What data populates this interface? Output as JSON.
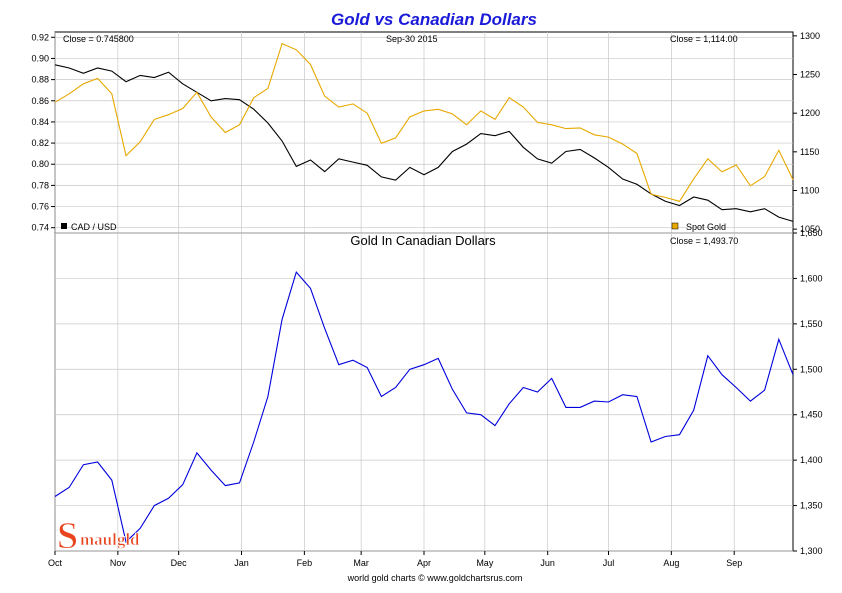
{
  "chart_data": [
    {
      "type": "line",
      "title": "Gold vs Canadian Dollars",
      "date_label": "Sep-30  2015",
      "left_axis": {
        "ylim": [
          0.735,
          0.925
        ],
        "ticks": [
          "0.92",
          "0.90",
          "0.88",
          "0.86",
          "0.84",
          "0.82",
          "0.80",
          "0.78",
          "0.76",
          "0.74"
        ],
        "tick_values": [
          0.92,
          0.9,
          0.88,
          0.86,
          0.84,
          0.82,
          0.8,
          0.78,
          0.76,
          0.74
        ]
      },
      "right_axis": {
        "ylim": [
          1045,
          1305
        ],
        "ticks": [
          "1300",
          "1250",
          "1200",
          "1150",
          "1100",
          "1050"
        ],
        "tick_values": [
          1300,
          1250,
          1200,
          1150,
          1100,
          1050
        ]
      },
      "close_left": "Close = 0.745800",
      "close_right": "Close = 1,114.00",
      "legend_position": "bottom",
      "grid": true,
      "series": [
        {
          "name": "CAD / USD",
          "color": "#000000",
          "axis": "left",
          "points": [
            [
              "2014-10-01",
              0.894
            ],
            [
              "2014-10-08",
              0.891
            ],
            [
              "2014-10-15",
              0.886
            ],
            [
              "2014-10-22",
              0.891
            ],
            [
              "2014-10-29",
              0.888
            ],
            [
              "2014-11-05",
              0.878
            ],
            [
              "2014-11-12",
              0.884
            ],
            [
              "2014-11-19",
              0.882
            ],
            [
              "2014-11-26",
              0.887
            ],
            [
              "2014-12-03",
              0.876
            ],
            [
              "2014-12-10",
              0.868
            ],
            [
              "2014-12-17",
              0.86
            ],
            [
              "2014-12-24",
              0.862
            ],
            [
              "2014-12-31",
              0.861
            ],
            [
              "2015-01-07",
              0.852
            ],
            [
              "2015-01-14",
              0.839
            ],
            [
              "2015-01-21",
              0.822
            ],
            [
              "2015-01-28",
              0.798
            ],
            [
              "2015-02-04",
              0.804
            ],
            [
              "2015-02-11",
              0.793
            ],
            [
              "2015-02-18",
              0.805
            ],
            [
              "2015-02-25",
              0.802
            ],
            [
              "2015-03-04",
              0.799
            ],
            [
              "2015-03-11",
              0.788
            ],
            [
              "2015-03-18",
              0.785
            ],
            [
              "2015-03-25",
              0.797
            ],
            [
              "2015-04-01",
              0.79
            ],
            [
              "2015-04-08",
              0.797
            ],
            [
              "2015-04-15",
              0.812
            ],
            [
              "2015-04-22",
              0.819
            ],
            [
              "2015-04-29",
              0.829
            ],
            [
              "2015-05-06",
              0.827
            ],
            [
              "2015-05-13",
              0.831
            ],
            [
              "2015-05-20",
              0.816
            ],
            [
              "2015-05-27",
              0.805
            ],
            [
              "2015-06-03",
              0.801
            ],
            [
              "2015-06-10",
              0.812
            ],
            [
              "2015-06-17",
              0.814
            ],
            [
              "2015-06-24",
              0.806
            ],
            [
              "2015-07-01",
              0.797
            ],
            [
              "2015-07-08",
              0.786
            ],
            [
              "2015-07-15",
              0.781
            ],
            [
              "2015-07-22",
              0.772
            ],
            [
              "2015-07-29",
              0.765
            ],
            [
              "2015-08-05",
              0.761
            ],
            [
              "2015-08-12",
              0.769
            ],
            [
              "2015-08-19",
              0.766
            ],
            [
              "2015-08-26",
              0.757
            ],
            [
              "2015-09-02",
              0.758
            ],
            [
              "2015-09-09",
              0.755
            ],
            [
              "2015-09-16",
              0.758
            ],
            [
              "2015-09-23",
              0.75
            ],
            [
              "2015-09-30",
              0.746
            ]
          ]
        },
        {
          "name": "Spot Gold",
          "color": "#e8a800",
          "axis": "right",
          "points": [
            [
              "2014-10-01",
              1214
            ],
            [
              "2014-10-08",
              1225
            ],
            [
              "2014-10-15",
              1238
            ],
            [
              "2014-10-22",
              1245
            ],
            [
              "2014-10-29",
              1225
            ],
            [
              "2014-11-05",
              1145
            ],
            [
              "2014-11-12",
              1163
            ],
            [
              "2014-11-19",
              1192
            ],
            [
              "2014-11-26",
              1198
            ],
            [
              "2014-12-03",
              1206
            ],
            [
              "2014-12-10",
              1227
            ],
            [
              "2014-12-17",
              1195
            ],
            [
              "2014-12-24",
              1175
            ],
            [
              "2014-12-31",
              1185
            ],
            [
              "2015-01-07",
              1220
            ],
            [
              "2015-01-14",
              1232
            ],
            [
              "2015-01-21",
              1290
            ],
            [
              "2015-01-28",
              1282
            ],
            [
              "2015-02-04",
              1263
            ],
            [
              "2015-02-11",
              1222
            ],
            [
              "2015-02-18",
              1208
            ],
            [
              "2015-02-25",
              1212
            ],
            [
              "2015-03-04",
              1200
            ],
            [
              "2015-03-11",
              1161
            ],
            [
              "2015-03-18",
              1168
            ],
            [
              "2015-03-25",
              1195
            ],
            [
              "2015-04-01",
              1203
            ],
            [
              "2015-04-08",
              1205
            ],
            [
              "2015-04-15",
              1199
            ],
            [
              "2015-04-22",
              1185
            ],
            [
              "2015-04-29",
              1203
            ],
            [
              "2015-05-06",
              1192
            ],
            [
              "2015-05-13",
              1220
            ],
            [
              "2015-05-20",
              1208
            ],
            [
              "2015-05-27",
              1188
            ],
            [
              "2015-06-03",
              1185
            ],
            [
              "2015-06-10",
              1180
            ],
            [
              "2015-06-17",
              1181
            ],
            [
              "2015-06-24",
              1172
            ],
            [
              "2015-07-01",
              1169
            ],
            [
              "2015-07-08",
              1160
            ],
            [
              "2015-07-15",
              1148
            ],
            [
              "2015-07-22",
              1095
            ],
            [
              "2015-07-29",
              1091
            ],
            [
              "2015-08-05",
              1086
            ],
            [
              "2015-08-12",
              1115
            ],
            [
              "2015-08-19",
              1141
            ],
            [
              "2015-08-26",
              1124
            ],
            [
              "2015-09-02",
              1133
            ],
            [
              "2015-09-09",
              1106
            ],
            [
              "2015-09-16",
              1118
            ],
            [
              "2015-09-23",
              1152
            ],
            [
              "2015-09-30",
              1114
            ]
          ]
        }
      ]
    },
    {
      "type": "line",
      "title": "Gold In Canadian Dollars",
      "close": "Close = 1,493.70",
      "right_axis": {
        "ylim": [
          1300,
          1650
        ],
        "ticks": [
          "1,650",
          "1,600",
          "1,550",
          "1,500",
          "1,450",
          "1,400",
          "1,350",
          "1,300"
        ],
        "tick_values": [
          1650,
          1600,
          1550,
          1500,
          1450,
          1400,
          1350,
          1300
        ]
      },
      "grid": true,
      "series": [
        {
          "name": "",
          "color": "#0000dd",
          "points": [
            [
              "2014-10-01",
              1360
            ],
            [
              "2014-10-08",
              1370
            ],
            [
              "2014-10-15",
              1395
            ],
            [
              "2014-10-22",
              1398
            ],
            [
              "2014-10-29",
              1378
            ],
            [
              "2014-11-05",
              1310
            ],
            [
              "2014-11-12",
              1325
            ],
            [
              "2014-11-19",
              1350
            ],
            [
              "2014-11-26",
              1358
            ],
            [
              "2014-12-03",
              1373
            ],
            [
              "2014-12-10",
              1408
            ],
            [
              "2014-12-17",
              1389
            ],
            [
              "2014-12-24",
              1372
            ],
            [
              "2014-12-31",
              1375
            ],
            [
              "2015-01-07",
              1420
            ],
            [
              "2015-01-14",
              1470
            ],
            [
              "2015-01-21",
              1555
            ],
            [
              "2015-01-28",
              1607
            ],
            [
              "2015-02-04",
              1589
            ],
            [
              "2015-02-11",
              1545
            ],
            [
              "2015-02-18",
              1505
            ],
            [
              "2015-02-25",
              1510
            ],
            [
              "2015-03-04",
              1502
            ],
            [
              "2015-03-11",
              1470
            ],
            [
              "2015-03-18",
              1480
            ],
            [
              "2015-03-25",
              1500
            ],
            [
              "2015-04-01",
              1505
            ],
            [
              "2015-04-08",
              1512
            ],
            [
              "2015-04-15",
              1478
            ],
            [
              "2015-04-22",
              1452
            ],
            [
              "2015-04-29",
              1450
            ],
            [
              "2015-05-06",
              1438
            ],
            [
              "2015-05-13",
              1462
            ],
            [
              "2015-05-20",
              1480
            ],
            [
              "2015-05-27",
              1475
            ],
            [
              "2015-06-03",
              1490
            ],
            [
              "2015-06-10",
              1458
            ],
            [
              "2015-06-17",
              1458
            ],
            [
              "2015-06-24",
              1465
            ],
            [
              "2015-07-01",
              1464
            ],
            [
              "2015-07-08",
              1472
            ],
            [
              "2015-07-15",
              1470
            ],
            [
              "2015-07-22",
              1420
            ],
            [
              "2015-07-29",
              1426
            ],
            [
              "2015-08-05",
              1428
            ],
            [
              "2015-08-12",
              1455
            ],
            [
              "2015-08-19",
              1515
            ],
            [
              "2015-08-26",
              1494
            ],
            [
              "2015-09-02",
              1480
            ],
            [
              "2015-09-09",
              1465
            ],
            [
              "2015-09-16",
              1477
            ],
            [
              "2015-09-23",
              1533
            ],
            [
              "2015-09-30",
              1494
            ]
          ]
        }
      ]
    }
  ],
  "x_axis": {
    "labels": [
      "Oct",
      "Nov",
      "Dec",
      "Jan",
      "Feb",
      "Mar",
      "Apr",
      "May",
      "Jun",
      "Jul",
      "Aug",
      "Sep"
    ],
    "dates": [
      "2014-10-01",
      "2014-11-01",
      "2014-12-01",
      "2015-01-01",
      "2015-02-01",
      "2015-03-01",
      "2015-04-01",
      "2015-05-01",
      "2015-06-01",
      "2015-07-01",
      "2015-08-01",
      "2015-09-01"
    ],
    "range": [
      "2014-10-01",
      "2015-09-30"
    ]
  },
  "footer": "world gold charts © www.goldchartsrus.com",
  "logo_text": "Smaulgld",
  "colors": {
    "title": "#1a1ad8",
    "grid": "#c8c8c8",
    "logo": "#e8451e"
  }
}
